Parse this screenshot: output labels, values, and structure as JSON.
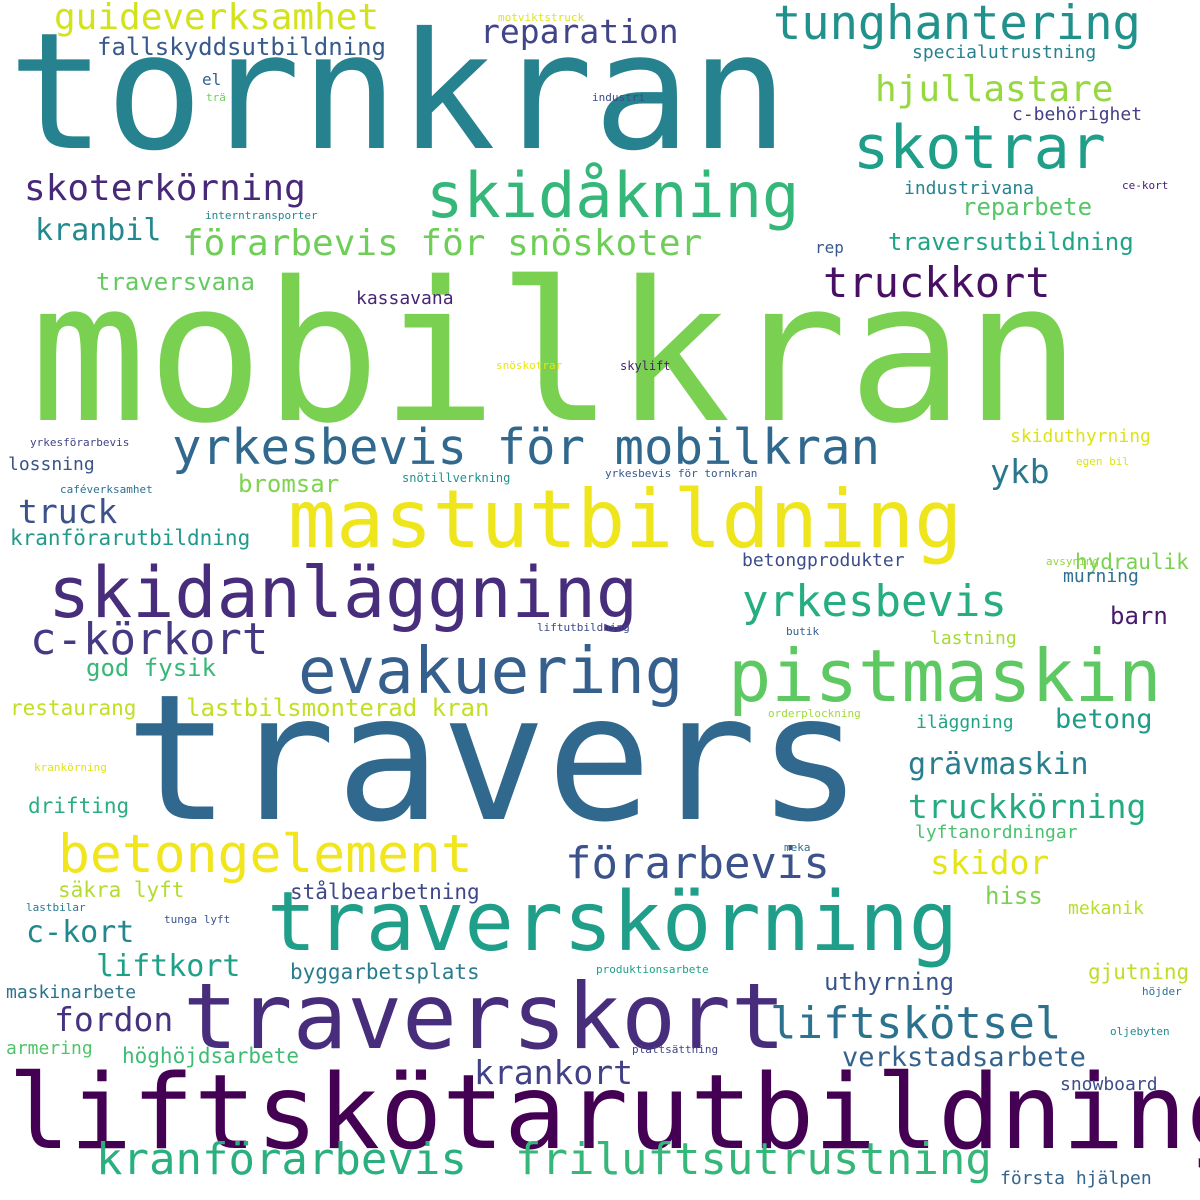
{
  "palette": {
    "c1": "#440154",
    "c2": "#482878",
    "c3": "#3e4a89",
    "c4": "#31688e",
    "c5": "#26828e",
    "c6": "#1f9e89",
    "c7": "#35b779",
    "c8": "#6ece58",
    "c9": "#b5de2b",
    "c10": "#fde725"
  },
  "words": [
    {
      "text": "tornkran",
      "color": "#26828e"
    },
    {
      "text": "mobilkran",
      "color": "#7ad151"
    },
    {
      "text": "travers",
      "color": "#31688e"
    },
    {
      "text": "liftskötarutbildning",
      "color": "#440154"
    },
    {
      "text": "traverskort",
      "color": "#472d7b"
    },
    {
      "text": "traverskörning",
      "color": "#1f9e89"
    },
    {
      "text": "mastutbildning",
      "color": "#efe51c"
    },
    {
      "text": "pistmaskin",
      "color": "#5ec962"
    },
    {
      "text": "skidanläggning",
      "color": "#472d7b"
    },
    {
      "text": "evakuering",
      "color": "#355f8d"
    },
    {
      "text": "betongelement",
      "color": "#f1e51d"
    },
    {
      "text": "skidåkning",
      "color": "#35b779"
    },
    {
      "text": "yrkesbevis för mobilkran",
      "color": "#31688e"
    },
    {
      "text": "kranförarbevis",
      "color": "#2ab07f"
    },
    {
      "text": "friluftsutrustning",
      "color": "#35b779"
    },
    {
      "text": "skotrar",
      "color": "#1f9e89"
    },
    {
      "text": "förarbevis",
      "color": "#3b528b"
    },
    {
      "text": "tunghantering",
      "color": "#21918c"
    },
    {
      "text": "c-körkort",
      "color": "#443983"
    },
    {
      "text": "yrkesbevis",
      "color": "#26ad81"
    },
    {
      "text": "liftskötsel",
      "color": "#2c728e"
    },
    {
      "text": "förarbevis för snöskoter",
      "color": "#6ece58"
    },
    {
      "text": "truckkort",
      "color": "#471063"
    },
    {
      "text": "skoterkörning",
      "color": "#482878"
    },
    {
      "text": "truckkörning",
      "color": "#25ab82"
    },
    {
      "text": "krankort",
      "color": "#424086"
    },
    {
      "text": "guideverksamhet",
      "color": "#d2e21b"
    },
    {
      "text": "hjullastare",
      "color": "#95d840"
    },
    {
      "text": "reparation",
      "color": "#414487"
    },
    {
      "text": "skidor",
      "color": "#e5e419"
    },
    {
      "text": "ykb",
      "color": "#2a788e"
    },
    {
      "text": "truck",
      "color": "#3b528b"
    },
    {
      "text": "fordon",
      "color": "#46327e"
    },
    {
      "text": "grävmaskin",
      "color": "#277f8e"
    },
    {
      "text": "verkstadsarbete",
      "color": "#33628d"
    },
    {
      "text": "c-kort",
      "color": "#23888e"
    },
    {
      "text": "liftkort",
      "color": "#1fa187"
    },
    {
      "text": "betong",
      "color": "#1e9c89"
    },
    {
      "text": "kranbil",
      "color": "#23898e"
    },
    {
      "text": "lastbilsmonterad kran",
      "color": "#c2df23"
    },
    {
      "text": "fallskyddsutbildning",
      "color": "#375a8c"
    },
    {
      "text": "god fysik",
      "color": "#37b878"
    },
    {
      "text": "uthyrning",
      "color": "#39568c"
    },
    {
      "text": "bromsar",
      "color": "#7fd34e"
    },
    {
      "text": "traversvana",
      "color": "#62cb5f"
    },
    {
      "text": "reparbete",
      "color": "#56c667"
    },
    {
      "text": "traversutbildning",
      "color": "#20a486"
    },
    {
      "text": "byggarbetsplats",
      "color": "#297b8e"
    },
    {
      "text": "stålbearbetning",
      "color": "#3f4788"
    },
    {
      "text": "säkra lyft",
      "color": "#b2dd2d"
    },
    {
      "text": "kassavana",
      "color": "#482475"
    },
    {
      "text": "barn",
      "color": "#481a6c"
    },
    {
      "text": "höghöjdsarbete",
      "color": "#3fbc73"
    },
    {
      "text": "kranförarutbildning",
      "color": "#1f9a8a"
    },
    {
      "text": "hydraulik",
      "color": "#7ad151"
    },
    {
      "text": "gjutning",
      "color": "#bddf26"
    },
    {
      "text": "lossning",
      "color": "#3a538b"
    },
    {
      "text": "restaurang",
      "color": "#c0df25"
    },
    {
      "text": "drifting",
      "color": "#29af7f"
    },
    {
      "text": "maskinarbete",
      "color": "#2c738e"
    },
    {
      "text": "armering",
      "color": "#50c46a"
    },
    {
      "text": "skiduthyrning",
      "color": "#dde318"
    },
    {
      "text": "specialutrustning",
      "color": "#26828e"
    },
    {
      "text": "c-behörighet",
      "color": "#433e85"
    },
    {
      "text": "industrivana",
      "color": "#25848e"
    },
    {
      "text": "lastning",
      "color": "#a5db36"
    },
    {
      "text": "iläggning",
      "color": "#20a486"
    },
    {
      "text": "hiss",
      "color": "#7ad151"
    },
    {
      "text": "mekanik",
      "color": "#b8de29"
    },
    {
      "text": "lyftanordningar",
      "color": "#4ac16d"
    },
    {
      "text": "murning",
      "color": "#2e6e8e"
    },
    {
      "text": "betongprodukter",
      "color": "#3d4d8a"
    },
    {
      "text": "snowboard",
      "color": "#3e4c8a"
    },
    {
      "text": "första hjälpen",
      "color": "#32658e"
    },
    {
      "text": "motviktstruck",
      "color": "#e1e418"
    },
    {
      "text": "el",
      "color": "#355f8d"
    },
    {
      "text": "trä",
      "color": "#6ece58"
    },
    {
      "text": "industri",
      "color": "#3e4a89"
    },
    {
      "text": "interntransporter",
      "color": "#24868e"
    },
    {
      "text": "ce-kort",
      "color": "#482071"
    },
    {
      "text": "rep",
      "color": "#38588c"
    },
    {
      "text": "snöskotrar",
      "color": "#e7e419"
    },
    {
      "text": "skylift",
      "color": "#481f70"
    },
    {
      "text": "yrkesförarbevis",
      "color": "#414487"
    },
    {
      "text": "egen bil",
      "color": "#dae319"
    },
    {
      "text": "snötillverkning",
      "color": "#21918c"
    },
    {
      "text": "caféverksamhet",
      "color": "#2d708e"
    },
    {
      "text": "yrkesbevis för tornkran",
      "color": "#38588c"
    },
    {
      "text": "avsyning",
      "color": "#93d741"
    },
    {
      "text": "liftutbildning",
      "color": "#3e4989"
    },
    {
      "text": "butik",
      "color": "#34618d"
    },
    {
      "text": "orderplockning",
      "color": "#a0da39"
    },
    {
      "text": "krankörning",
      "color": "#dfe318"
    },
    {
      "text": "meka",
      "color": "#2f6c8e"
    },
    {
      "text": "lastbilar",
      "color": "#297a8e"
    },
    {
      "text": "tunga lyft",
      "color": "#3a548c"
    },
    {
      "text": "produktionsarbete",
      "color": "#1fa088"
    },
    {
      "text": "höjder",
      "color": "#2d718e"
    },
    {
      "text": "oljebyten",
      "color": "#24878e"
    },
    {
      "text": "plattsättning",
      "color": "#404688"
    }
  ]
}
